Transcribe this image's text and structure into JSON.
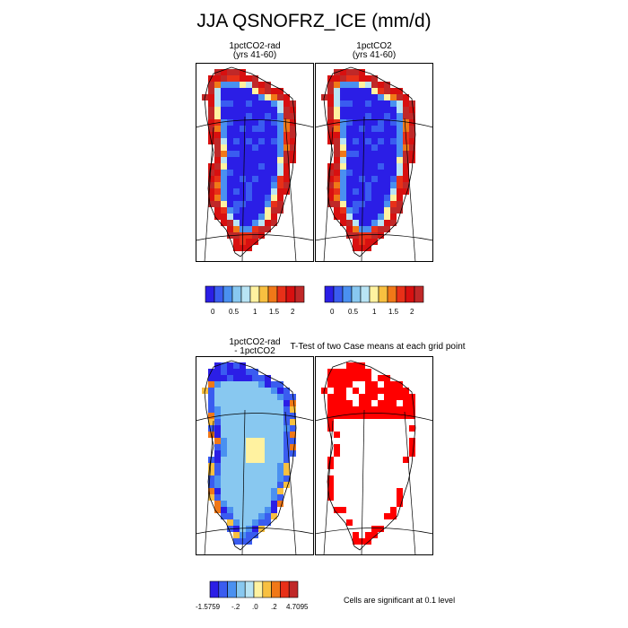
{
  "title": "JJA QSNOFRZ_ICE (mm/d)",
  "panels": {
    "p1": {
      "title_line1": "1pctCO2-rad",
      "title_line2": "(yrs 41-60)"
    },
    "p2": {
      "title_line1": "1pctCO2",
      "title_line2": "(yrs 41-60)"
    },
    "p3": {
      "title_line1": "1pctCO2-rad",
      "title_line2": "- 1pctCO2"
    },
    "p4": {
      "title": "T-Test of two Case means at each grid point"
    }
  },
  "footnote": "Cells are significant at 0.1 level",
  "colors": {
    "abs_scale": [
      "#2b1ee6",
      "#3a5cf0",
      "#4a90f0",
      "#88c8f0",
      "#b8e4f4",
      "#fff2a0",
      "#f8c040",
      "#f07818",
      "#e83018",
      "#d81010",
      "#c02828"
    ],
    "diff_scale": [
      "#2b1ee6",
      "#3a5cf0",
      "#4a90f0",
      "#88c8f0",
      "#b8e4f4",
      "#fff2a0",
      "#f8c040",
      "#f07818",
      "#e83018",
      "#c02828"
    ],
    "significant": "#ff0000",
    "land_outline": "#000000"
  },
  "chart_data": [
    {
      "type": "heatmap",
      "title": "1pctCO2-rad (yrs 41-60)",
      "colorbar_ticks": [
        "0",
        "0.5",
        "1",
        "1.5",
        "2"
      ],
      "pattern": "ice sheet interior ~0 (blue), margins >2 (red)"
    },
    {
      "type": "heatmap",
      "title": "1pctCO2 (yrs 41-60)",
      "colorbar_ticks": [
        "0",
        "0.5",
        "1",
        "1.5",
        "2"
      ],
      "pattern": "ice sheet interior ~0 (blue), margins >2 (red)"
    },
    {
      "type": "heatmap",
      "title": "1pctCO2-rad - 1pctCO2",
      "colorbar_ticks": [
        "-1.5759",
        "-.2",
        ".0",
        ".2",
        "4.7095"
      ],
      "range": [
        -1.5759,
        4.7095
      ],
      "pattern": "interior ~0 (light blue), margins negative (blue), small positive patch in center"
    },
    {
      "type": "heatmap",
      "title": "T-Test of two Case means at each grid point",
      "pattern": "red cells significant at 0.1 level along margins and north"
    }
  ]
}
